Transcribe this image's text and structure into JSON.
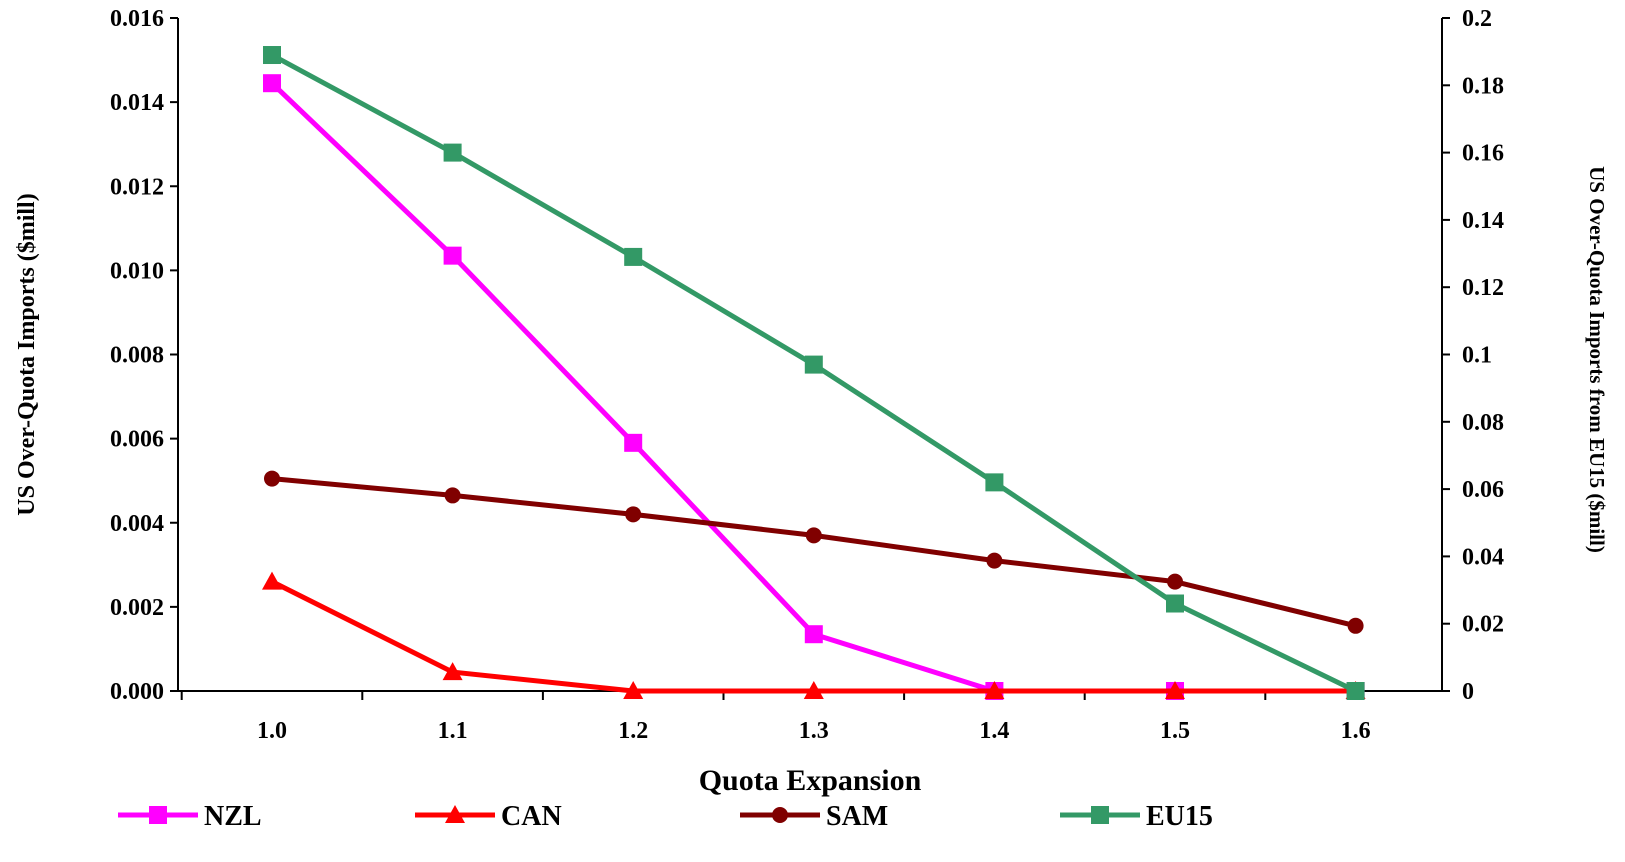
{
  "chart_data": {
    "type": "line",
    "x": [
      1.0,
      1.1,
      1.2,
      1.3,
      1.4,
      1.5,
      1.6
    ],
    "x_tick_labels": [
      "1.0",
      "1.1",
      "1.2",
      "1.3",
      "1.4",
      "1.5",
      "1.6"
    ],
    "xlabel": "Quota Expansion",
    "ylabel": "US Over-Quota Imports ($mill)",
    "ylabel_right": "US Over-Quota Imports from EU15 ($mill)",
    "ylim": [
      0,
      0.016
    ],
    "ylim_right": [
      0,
      0.2
    ],
    "y_ticks": [
      "0.000",
      "0.002",
      "0.004",
      "0.006",
      "0.008",
      "0.010",
      "0.012",
      "0.014",
      "0.016"
    ],
    "y_ticks_right": [
      "0",
      "0.02",
      "0.04",
      "0.06",
      "0.08",
      "0.1",
      "0.12",
      "0.14",
      "0.16",
      "0.18",
      "0.2"
    ],
    "grid": false,
    "legend_position": "bottom",
    "series": [
      {
        "name": "NZL",
        "axis": "left",
        "color": "#ff00ff",
        "marker": "square",
        "values": [
          0.01445,
          0.01035,
          0.0059,
          0.00135,
          0.0,
          0.0,
          0.0
        ]
      },
      {
        "name": "CAN",
        "axis": "left",
        "color": "#ff0000",
        "marker": "triangle",
        "values": [
          0.0026,
          0.00045,
          0.0,
          0.0,
          0.0,
          0.0,
          0.0
        ]
      },
      {
        "name": "SAM",
        "axis": "left",
        "color": "#800000",
        "marker": "circle",
        "values": [
          0.00505,
          0.00465,
          0.0042,
          0.0037,
          0.0031,
          0.0026,
          0.00155
        ]
      },
      {
        "name": "EU15",
        "axis": "right",
        "color": "#339966",
        "marker": "square",
        "values": [
          0.189,
          0.16,
          0.129,
          0.097,
          0.062,
          0.026,
          0.0
        ]
      }
    ]
  }
}
